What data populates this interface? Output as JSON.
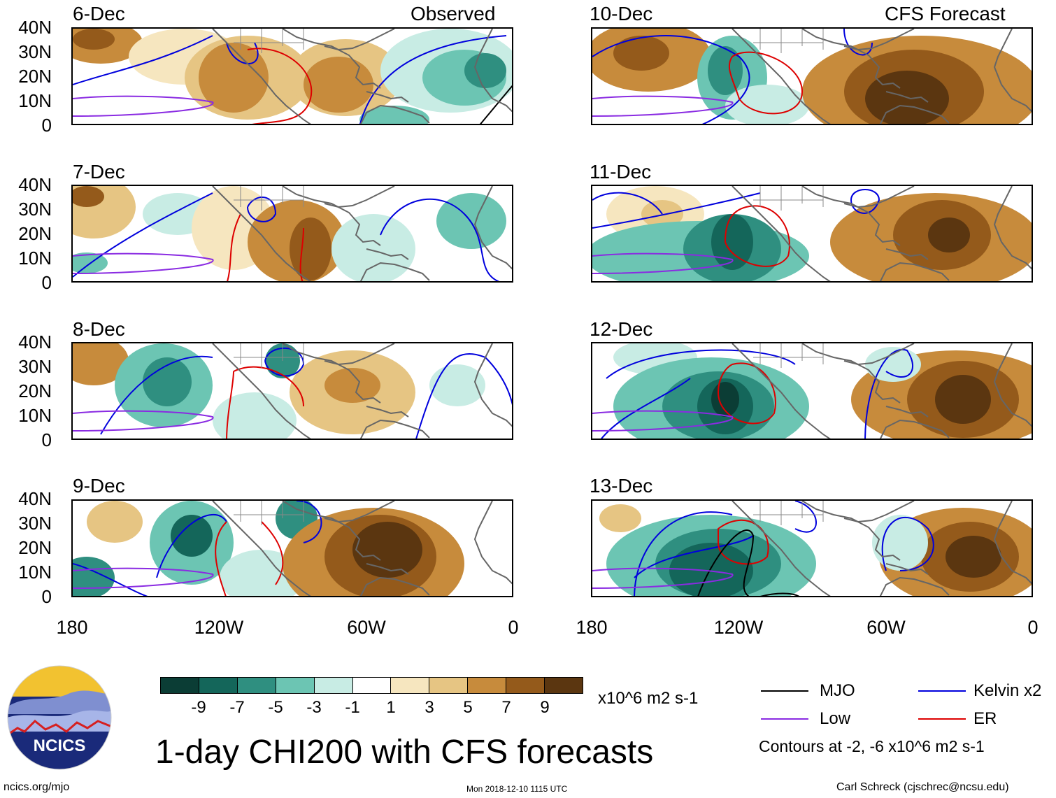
{
  "panels_observed": {
    "header": "Observed",
    "dates": [
      "6-Dec",
      "7-Dec",
      "8-Dec",
      "9-Dec"
    ]
  },
  "panels_forecast": {
    "header": "CFS Forecast",
    "dates": [
      "10-Dec",
      "11-Dec",
      "12-Dec",
      "13-Dec"
    ]
  },
  "lat_labels": [
    "40N",
    "30N",
    "20N",
    "10N",
    "0"
  ],
  "lon_labels": [
    "180",
    "120W",
    "60W",
    "0"
  ],
  "colorbar": {
    "colors": [
      "#0b3d35",
      "#14665a",
      "#2f8f80",
      "#6cc5b3",
      "#c8ece4",
      "#ffffff",
      "#f6e6bf",
      "#e6c583",
      "#c78b3c",
      "#945a1b",
      "#5b3610"
    ],
    "labels": [
      "-9",
      "-7",
      "-5",
      "-3",
      "-1",
      "1",
      "3",
      "5",
      "7",
      "9"
    ],
    "units": "x10^6 m2 s-1"
  },
  "legend": {
    "mjo": "MJO",
    "kelvin": "Kelvin x2",
    "low": "Low",
    "er": "ER",
    "contours_note": "Contours at -2, -6 x10^6 m2 s-1",
    "colors": {
      "mjo": "#000000",
      "kelvin": "#0000dd",
      "low": "#8a2be2",
      "er": "#dd0000"
    }
  },
  "title": "1-day CHI200 with CFS forecasts",
  "logo_text": "NCICS",
  "footer": {
    "website": "ncics.org/mjo",
    "timestamp": "Mon 2018-12-10 1115 UTC",
    "author": "Carl Schreck (cjschrec@ncsu.edu)"
  }
}
